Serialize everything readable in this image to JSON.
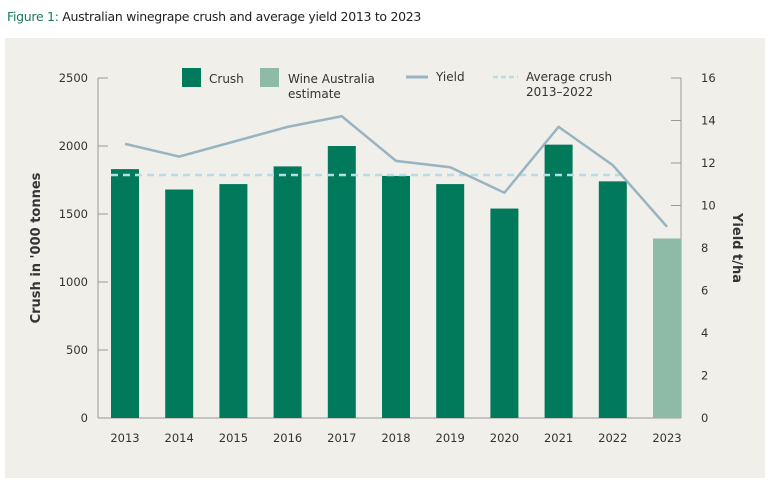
{
  "title": {
    "prefix": "Figure 1:",
    "text": "Australian winegrape crush and average yield 2013 to 2023"
  },
  "chart_data": {
    "type": "bar",
    "categories": [
      "2013",
      "2014",
      "2015",
      "2016",
      "2017",
      "2018",
      "2019",
      "2020",
      "2021",
      "2022",
      "2023"
    ],
    "series": [
      {
        "name": "Crush",
        "type": "bar",
        "axis": "left",
        "color": "#007a5a",
        "values": [
          1830,
          1680,
          1720,
          1850,
          2000,
          1780,
          1720,
          1540,
          2010,
          1740,
          null
        ]
      },
      {
        "name": "Wine Australia estimate",
        "type": "bar",
        "axis": "left",
        "color": "#8dbba7",
        "values": [
          null,
          null,
          null,
          null,
          null,
          null,
          null,
          null,
          null,
          null,
          1320
        ]
      },
      {
        "name": "Yield",
        "type": "line",
        "axis": "right",
        "color": "#98b4c2",
        "values": [
          12.9,
          12.3,
          13.0,
          13.7,
          14.2,
          12.1,
          11.8,
          10.6,
          13.7,
          11.9,
          9.0
        ]
      },
      {
        "name": "Average crush 2013–2022",
        "type": "dashed-line",
        "axis": "left",
        "color": "#b7dce6",
        "value": 1787,
        "range": [
          "2013",
          "2022"
        ]
      }
    ],
    "ylabel": "Crush in '000 tonnes",
    "y2label": "Yield t/ha",
    "ylim": [
      0,
      2500
    ],
    "yticks": [
      0,
      500,
      1000,
      1500,
      2000,
      2500
    ],
    "y2lim": [
      0,
      16
    ],
    "y2ticks": [
      0,
      2,
      4,
      6,
      8,
      10,
      12,
      14,
      16
    ],
    "legend": {
      "placement": "top",
      "labels": [
        "Crush",
        "Wine Australia estimate",
        "Yield",
        "Average crush 2013–2022"
      ]
    },
    "grid": false
  }
}
